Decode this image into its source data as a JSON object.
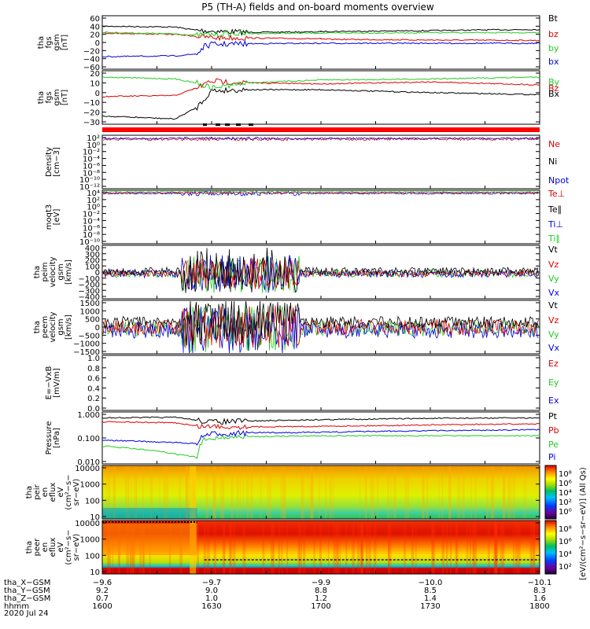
{
  "title": "P5 (TH-A) fields and on-board moments overview",
  "chart_data": [
    {
      "type": "line",
      "ylabel": [
        "tha",
        "fgs",
        "gsm",
        "[nT]"
      ],
      "yticks": [
        "60",
        "40",
        "20",
        "0",
        "−20",
        "−40",
        "−60"
      ],
      "legend": [
        "Bt",
        "bz",
        "by",
        "bx"
      ],
      "colors": {
        "Bt": "#000000",
        "bz": "#dd0000",
        "by": "#22cc22",
        "bx": "#0000dd"
      },
      "series": [
        {
          "name": "Bt",
          "points": [
            [
              1600,
              40
            ],
            [
              1620,
              38
            ],
            [
              1626,
              30
            ],
            [
              1630,
              28
            ],
            [
              1640,
              25
            ],
            [
              1660,
              26
            ],
            [
              1700,
              27
            ],
            [
              1730,
              29
            ],
            [
              1745,
              31
            ],
            [
              1800,
              32
            ]
          ]
        },
        {
          "name": "bz",
          "points": [
            [
              1600,
              23
            ],
            [
              1620,
              20
            ],
            [
              1626,
              15
            ],
            [
              1630,
              12
            ],
            [
              1640,
              11
            ],
            [
              1660,
              9
            ],
            [
              1700,
              8
            ],
            [
              1730,
              6
            ],
            [
              1800,
              5
            ]
          ]
        },
        {
          "name": "by",
          "points": [
            [
              1600,
              25
            ],
            [
              1620,
              21
            ],
            [
              1626,
              18
            ],
            [
              1630,
              20
            ],
            [
              1640,
              22
            ],
            [
              1700,
              23
            ],
            [
              1730,
              24
            ],
            [
              1800,
              24
            ]
          ]
        },
        {
          "name": "bx",
          "points": [
            [
              1600,
              -35
            ],
            [
              1620,
              -33
            ],
            [
              1626,
              -28
            ],
            [
              1628,
              -10
            ],
            [
              1630,
              -5
            ],
            [
              1640,
              -3
            ],
            [
              1700,
              -2
            ],
            [
              1800,
              -2
            ]
          ]
        }
      ]
    },
    {
      "type": "line",
      "ylabel": [
        "tha",
        "fgs",
        "gsm",
        "[nT]"
      ],
      "yticks": [
        "20",
        "10",
        "0",
        "−10",
        "−20",
        "−30"
      ],
      "legend": [
        "By",
        "Bz",
        "Bx"
      ],
      "colors": {
        "By": "#22cc22",
        "Bz": "#dd0000",
        "Bx": "#000000"
      },
      "series": [
        {
          "name": "Bx",
          "points": [
            [
              1600,
              -24
            ],
            [
              1620,
              -27
            ],
            [
              1626,
              -15
            ],
            [
              1630,
              2
            ],
            [
              1640,
              3
            ],
            [
              1700,
              3
            ],
            [
              1730,
              0
            ],
            [
              1800,
              -2
            ]
          ]
        },
        {
          "name": "Bz",
          "points": [
            [
              1600,
              -4
            ],
            [
              1620,
              -3
            ],
            [
              1626,
              5
            ],
            [
              1630,
              12
            ],
            [
              1640,
              10
            ],
            [
              1700,
              9
            ],
            [
              1730,
              11
            ],
            [
              1800,
              8
            ]
          ]
        },
        {
          "name": "By",
          "points": [
            [
              1600,
              16
            ],
            [
              1620,
              14
            ],
            [
              1626,
              10
            ],
            [
              1630,
              5
            ],
            [
              1640,
              10
            ],
            [
              1700,
              13
            ],
            [
              1730,
              14
            ],
            [
              1800,
              16
            ]
          ]
        }
      ]
    },
    {
      "type": "line",
      "ylabel": [
        "Density",
        "[cm−3]"
      ],
      "yticks": [
        "10²",
        "10⁰",
        "10⁻²",
        "10⁻⁴",
        "10⁻⁶",
        "10⁻⁸",
        "10⁻¹⁰",
        "10⁻¹²"
      ],
      "legend": [
        "Ne",
        "Ni",
        "Npot"
      ],
      "colors": {
        "Ne": "#dd0000",
        "Ni": "#000000",
        "Npot": "#0000dd"
      }
    },
    {
      "type": "line",
      "ylabel": [
        "moqt3",
        "[eV]"
      ],
      "yticks": [
        "10⁴",
        "10²",
        "10⁰",
        "10⁻²",
        "10⁻⁴",
        "10⁻⁶",
        "10⁻⁸",
        "10⁻¹⁰"
      ],
      "legend": [
        "Te⊥",
        "Te∥",
        "Ti⊥",
        "Ti∥"
      ],
      "colors": {
        "Te⊥": "#dd0000",
        "Te∥": "#000000",
        "Ti⊥": "#0000dd",
        "Ti∥": "#22cc22"
      }
    },
    {
      "type": "line",
      "ylabel": [
        "tha",
        "peim",
        "velocity",
        "gsm",
        "[km/s]"
      ],
      "yticks": [
        "400",
        "300",
        "200",
        "100",
        "0",
        "−100",
        "−200",
        "−300",
        "−400"
      ],
      "legend": [
        "Vt",
        "Vz",
        "Vy",
        "Vx"
      ],
      "colors": {
        "Vt": "#000000",
        "Vz": "#dd0000",
        "Vy": "#22cc22",
        "Vx": "#0000dd"
      }
    },
    {
      "type": "line",
      "ylabel": [
        "tha",
        "peem",
        "velocity",
        "gsm",
        "[km/s]"
      ],
      "yticks": [
        "1500",
        "1000",
        "500",
        "0",
        "−500",
        "−1000",
        "−1500"
      ],
      "legend": [
        "Vt",
        "Vz",
        "Vy",
        "Vx"
      ],
      "colors": {
        "Vt": "#000000",
        "Vz": "#dd0000",
        "Vy": "#22cc22",
        "Vx": "#0000dd"
      }
    },
    {
      "type": "line",
      "ylabel": [
        "E=−VxB",
        "[mV/m]"
      ],
      "yticks": [
        "1.0",
        "0.8",
        "0.6",
        "0.4",
        "0.2",
        "0.0"
      ],
      "legend": [
        "Ez",
        "Ey",
        "Ex"
      ],
      "colors": {
        "Ez": "#dd0000",
        "Ey": "#22cc22",
        "Ex": "#0000dd"
      }
    },
    {
      "type": "line",
      "ylabel": [
        "Pressure",
        "[nPa]"
      ],
      "yticks": [
        "1.000",
        "0.100",
        "0.010"
      ],
      "legend": [
        "Pt",
        "Pb",
        "Pe",
        "Pi"
      ],
      "colors": {
        "Pt": "#000000",
        "Pb": "#dd0000",
        "Pe": "#22cc22",
        "Pi": "#0000dd"
      },
      "series": [
        {
          "name": "Pt",
          "points": [
            [
              1600,
              0.8
            ],
            [
              1620,
              0.85
            ],
            [
              1626,
              0.6
            ],
            [
              1630,
              0.5
            ],
            [
              1640,
              0.55
            ],
            [
              1700,
              0.65
            ],
            [
              1730,
              0.75
            ],
            [
              1800,
              0.8
            ]
          ]
        },
        {
          "name": "Pb",
          "points": [
            [
              1600,
              0.5
            ],
            [
              1620,
              0.45
            ],
            [
              1626,
              0.3
            ],
            [
              1630,
              0.3
            ],
            [
              1640,
              0.28
            ],
            [
              1700,
              0.3
            ],
            [
              1730,
              0.35
            ],
            [
              1800,
              0.4
            ]
          ]
        },
        {
          "name": "Pe",
          "points": [
            [
              1600,
              0.03
            ],
            [
              1620,
              0.012
            ],
            [
              1626,
              0.008
            ],
            [
              1628,
              0.06
            ],
            [
              1630,
              0.08
            ],
            [
              1640,
              0.09
            ],
            [
              1700,
              0.1
            ],
            [
              1730,
              0.1
            ],
            [
              1800,
              0.1
            ]
          ]
        },
        {
          "name": "Pi",
          "points": [
            [
              1600,
              0.06
            ],
            [
              1620,
              0.045
            ],
            [
              1626,
              0.04
            ],
            [
              1628,
              0.1
            ],
            [
              1630,
              0.12
            ],
            [
              1640,
              0.14
            ],
            [
              1700,
              0.15
            ],
            [
              1730,
              0.18
            ],
            [
              1800,
              0.2
            ]
          ]
        }
      ]
    },
    {
      "type": "heatmap",
      "ylabel": [
        "tha",
        "peir",
        "en",
        "eflux",
        "eV",
        "(cm²−s−",
        "sr−eV)"
      ],
      "yticks": [
        "10000",
        "1000",
        "100",
        "10"
      ],
      "colorbar": {
        "ticks": [
          "10⁸",
          "10⁶",
          "10⁴",
          "10²",
          "10⁰"
        ],
        "label": "[eV/(cm²−s−sr−eV)] (All Qs)"
      }
    },
    {
      "type": "heatmap",
      "ylabel": [
        "tha",
        "peer",
        "en",
        "eflux",
        "eV",
        "(cm²−s−",
        "sr−eV)"
      ],
      "yticks": [
        "10000",
        "1000",
        "100",
        "10"
      ],
      "colorbar": {
        "ticks": [
          "10⁸",
          "10⁶",
          "10⁴",
          "10²"
        ],
        "label": "[eV/(cm²−s−sr−eV)]"
      }
    }
  ],
  "xaxis": {
    "rows": [
      {
        "label": "tha_X−GSM",
        "values": [
          "−9.6",
          "−9.7",
          "−9.9",
          "−10.0",
          "−10.1"
        ]
      },
      {
        "label": "tha_Y−GSM",
        "values": [
          "9.2",
          "9.0",
          "8.8",
          "8.5",
          "8.3"
        ]
      },
      {
        "label": "tha_Z−GSM",
        "values": [
          "0.7",
          "1.0",
          "1.2",
          "1.4",
          "1.6"
        ]
      },
      {
        "label": "hhmm",
        "values": [
          "1600",
          "1630",
          "1700",
          "1730",
          "1800"
        ]
      }
    ],
    "date": "2020 Jul 24",
    "time_range": [
      1600,
      1800
    ]
  }
}
